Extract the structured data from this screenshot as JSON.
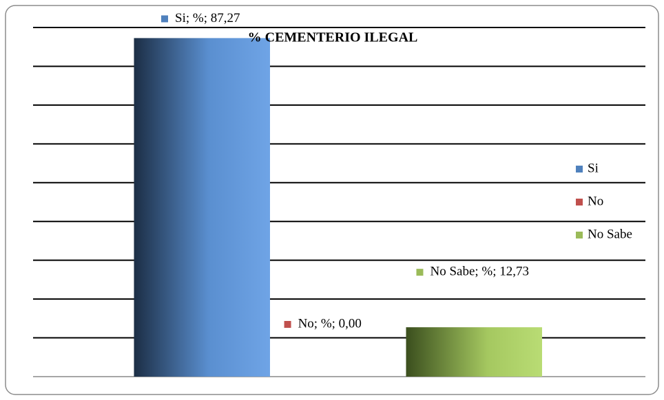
{
  "chart_data": {
    "type": "bar",
    "title": "% CEMENTERIO ILEGAL",
    "categories": [
      "Si",
      "No",
      "No Sabe"
    ],
    "values": [
      87.27,
      0,
      12.73
    ],
    "value_labels": [
      "Si; %; 87,27",
      "No; %; 0,00",
      "No Sabe; %; 12,73"
    ],
    "colors": [
      "#4f81bd",
      "#c0504d",
      "#9bbb59"
    ],
    "ylim": [
      0,
      90
    ],
    "yticks": [
      0,
      10,
      20,
      30,
      40,
      50,
      60,
      70,
      80,
      90
    ],
    "grid": true,
    "legend": "right"
  }
}
